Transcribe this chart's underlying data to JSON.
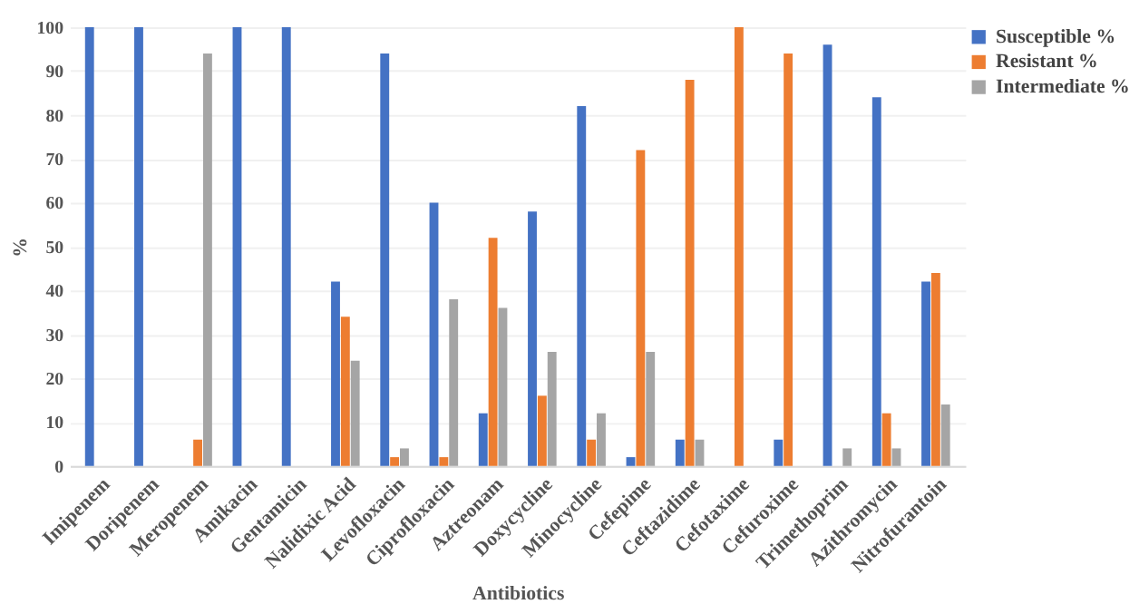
{
  "chart_data": {
    "type": "bar",
    "xlabel": "Antibiotics",
    "ylabel": "%",
    "categories": [
      "Imipenem",
      "Doripenem",
      "Meropenem",
      "Amikacin",
      "Gentamicin",
      "Nalidixic Acid",
      "Levofloxacin",
      "Ciprofloxacin",
      "Aztreonam",
      "Doxycycline",
      "Minocycline",
      "Cefepime",
      "Ceftazidime",
      "Cefotaxime",
      "Cefuroxime",
      "Trimethoprim",
      "Azithromycin",
      "Nitrofurantoin"
    ],
    "series": [
      {
        "name": "Susceptible %",
        "color": "#4472c4",
        "values": [
          100,
          100,
          0,
          100,
          100,
          42,
          94,
          60,
          12,
          58,
          82,
          2,
          6,
          0,
          6,
          96,
          84,
          42
        ]
      },
      {
        "name": "Resistant %",
        "color": "#ed7d31",
        "values": [
          0,
          0,
          6,
          0,
          0,
          34,
          2,
          2,
          52,
          16,
          6,
          72,
          88,
          100,
          94,
          0,
          12,
          44
        ]
      },
      {
        "name": "Intermediate %",
        "color": "#a5a5a5",
        "values": [
          0,
          0,
          94,
          0,
          0,
          24,
          4,
          38,
          36,
          26,
          12,
          26,
          6,
          0,
          0,
          4,
          4,
          14
        ]
      }
    ],
    "ylim": [
      0,
      100
    ],
    "yticks": [
      0,
      10,
      20,
      30,
      40,
      50,
      60,
      70,
      80,
      90,
      100
    ],
    "grid": "y",
    "legend": "top right"
  }
}
